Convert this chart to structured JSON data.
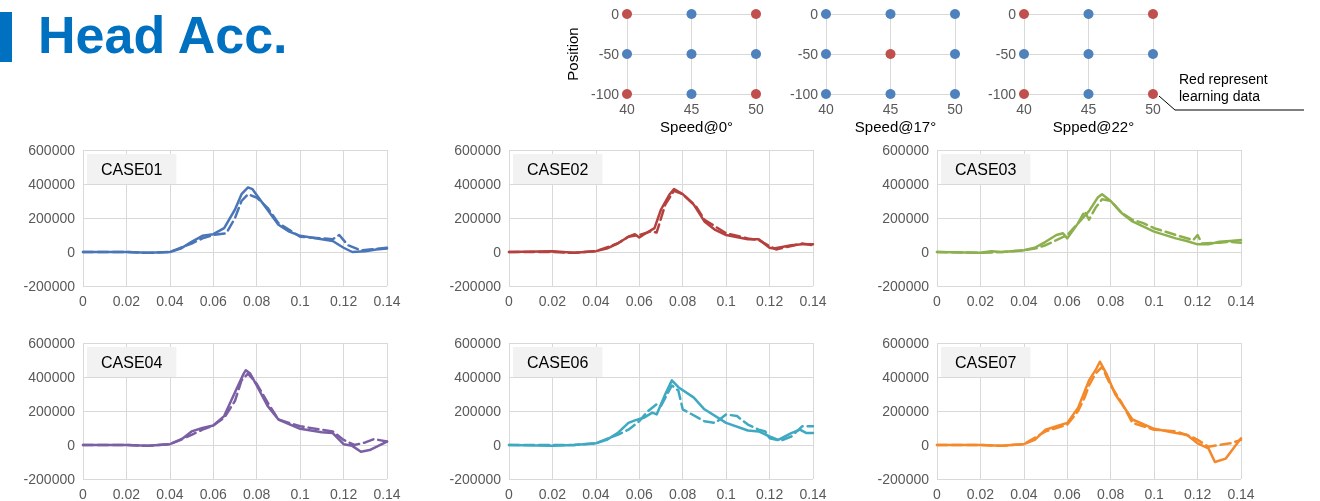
{
  "chart_data": [
    {
      "type": "other",
      "title": "Head Acc."
    },
    {
      "type": "scatter",
      "xlabel": "Speed@0°",
      "ylabel": "Position",
      "xlim": [
        40,
        50
      ],
      "ylim": [
        -100,
        0
      ],
      "xticks": [
        40,
        45,
        50
      ],
      "yticks": [
        -100,
        -50,
        0
      ],
      "grid": true,
      "marker": "circle",
      "series": [
        {
          "color": "#c0504d",
          "x": [
            40,
            50,
            40,
            50
          ],
          "values": [
            0,
            0,
            -100,
            -100
          ]
        },
        {
          "color": "#4f81bd",
          "x": [
            45,
            40,
            45,
            50,
            45
          ],
          "values": [
            0,
            -50,
            -50,
            -50,
            -100
          ]
        }
      ]
    },
    {
      "type": "scatter",
      "xlabel": "Speed@17°",
      "xlim": [
        40,
        50
      ],
      "ylim": [
        -100,
        0
      ],
      "xticks": [
        40,
        45,
        50
      ],
      "yticks": [
        -100,
        -50,
        0
      ],
      "grid": true,
      "marker": "circle",
      "series": [
        {
          "color": "#c0504d",
          "x": [
            45
          ],
          "values": [
            -50
          ]
        },
        {
          "color": "#4f81bd",
          "x": [
            40,
            45,
            50,
            40,
            50,
            40,
            45,
            50
          ],
          "values": [
            0,
            0,
            0,
            -50,
            -50,
            -100,
            -100,
            -100
          ]
        }
      ]
    },
    {
      "type": "scatter",
      "xlabel": "Spped@22°",
      "xlim": [
        40,
        50
      ],
      "ylim": [
        -100,
        0
      ],
      "xticks": [
        40,
        45,
        50
      ],
      "yticks": [
        -100,
        -50,
        0
      ],
      "grid": true,
      "marker": "circle",
      "annotations": [
        "Red represent learning data"
      ],
      "series": [
        {
          "color": "#c0504d",
          "x": [
            40,
            50,
            40,
            50
          ],
          "values": [
            0,
            0,
            -100,
            -100
          ]
        },
        {
          "color": "#4f81bd",
          "x": [
            45,
            40,
            45,
            50,
            45
          ],
          "values": [
            0,
            -50,
            -50,
            -50,
            -100
          ]
        }
      ]
    },
    {
      "type": "line",
      "title": "CASE01",
      "xlim": [
        0,
        0.14
      ],
      "xticks": [
        0,
        0.02,
        0.04,
        0.06,
        0.08,
        0.1,
        0.12,
        0.14
      ],
      "ylim": [
        -200000,
        600000
      ],
      "yticks": [
        -200000,
        0,
        200000,
        400000,
        600000
      ],
      "grid": true,
      "series": [
        {
          "color": "#4a76b8",
          "line_style": "solid",
          "x": [
            0,
            0.02,
            0.03,
            0.04,
            0.045,
            0.05,
            0.055,
            0.06,
            0.065,
            0.07,
            0.073,
            0.076,
            0.078,
            0.082,
            0.09,
            0.095,
            0.1,
            0.11,
            0.115,
            0.12,
            0.124,
            0.13,
            0.135,
            0.14
          ],
          "values": [
            0,
            0,
            -5000,
            0,
            20000,
            60000,
            95000,
            105000,
            140000,
            250000,
            340000,
            380000,
            370000,
            300000,
            160000,
            120000,
            95000,
            75000,
            65000,
            25000,
            0,
            5000,
            15000,
            20000
          ]
        },
        {
          "color": "#4a76b8",
          "line_style": "dashed",
          "x": [
            0,
            0.02,
            0.03,
            0.04,
            0.05,
            0.055,
            0.06,
            0.066,
            0.07,
            0.073,
            0.076,
            0.08,
            0.085,
            0.09,
            0.1,
            0.11,
            0.115,
            0.118,
            0.122,
            0.128,
            0.132,
            0.14
          ],
          "values": [
            0,
            0,
            -5000,
            0,
            50000,
            80000,
            100000,
            110000,
            200000,
            300000,
            340000,
            320000,
            260000,
            170000,
            90000,
            80000,
            75000,
            100000,
            40000,
            10000,
            15000,
            25000
          ]
        }
      ]
    },
    {
      "type": "line",
      "title": "CASE02",
      "xlim": [
        0,
        0.14
      ],
      "xticks": [
        0,
        0.02,
        0.04,
        0.06,
        0.08,
        0.1,
        0.12,
        0.14
      ],
      "ylim": [
        -200000,
        600000
      ],
      "yticks": [
        -200000,
        0,
        200000,
        400000,
        600000
      ],
      "grid": true,
      "series": [
        {
          "color": "#b5413e",
          "line_style": "solid",
          "x": [
            0,
            0.02,
            0.03,
            0.04,
            0.045,
            0.05,
            0.055,
            0.058,
            0.06,
            0.063,
            0.067,
            0.07,
            0.074,
            0.076,
            0.08,
            0.085,
            0.09,
            0.095,
            0.1,
            0.11,
            0.115,
            0.12,
            0.122,
            0.13,
            0.135,
            0.14
          ],
          "values": [
            0,
            5000,
            -5000,
            5000,
            20000,
            50000,
            90000,
            105000,
            85000,
            110000,
            140000,
            250000,
            340000,
            370000,
            340000,
            280000,
            180000,
            130000,
            100000,
            75000,
            75000,
            25000,
            20000,
            40000,
            45000,
            45000
          ]
        },
        {
          "color": "#b5413e",
          "line_style": "dashed",
          "x": [
            0,
            0.02,
            0.03,
            0.04,
            0.05,
            0.055,
            0.06,
            0.065,
            0.068,
            0.072,
            0.076,
            0.08,
            0.086,
            0.09,
            0.1,
            0.11,
            0.115,
            0.12,
            0.123,
            0.13,
            0.135,
            0.14
          ],
          "values": [
            0,
            0,
            -5000,
            5000,
            50000,
            90000,
            100000,
            120000,
            115000,
            280000,
            360000,
            340000,
            270000,
            190000,
            110000,
            80000,
            70000,
            35000,
            15000,
            35000,
            50000,
            40000
          ]
        }
      ]
    },
    {
      "type": "line",
      "title": "CASE03",
      "xlim": [
        0,
        0.14
      ],
      "xticks": [
        0,
        0.02,
        0.04,
        0.06,
        0.08,
        0.1,
        0.12,
        0.14
      ],
      "ylim": [
        -200000,
        600000
      ],
      "yticks": [
        -200000,
        0,
        200000,
        400000,
        600000
      ],
      "grid": true,
      "series": [
        {
          "color": "#8db04f",
          "line_style": "solid",
          "x": [
            0,
            0.02,
            0.025,
            0.03,
            0.04,
            0.045,
            0.05,
            0.055,
            0.058,
            0.06,
            0.065,
            0.07,
            0.074,
            0.076,
            0.08,
            0.085,
            0.09,
            0.1,
            0.11,
            0.115,
            0.12,
            0.125,
            0.13,
            0.135,
            0.14
          ],
          "values": [
            0,
            -5000,
            5000,
            0,
            10000,
            25000,
            60000,
            100000,
            110000,
            80000,
            170000,
            240000,
            320000,
            340000,
            300000,
            230000,
            180000,
            120000,
            80000,
            65000,
            45000,
            45000,
            60000,
            65000,
            70000
          ]
        },
        {
          "color": "#8db04f",
          "line_style": "dashed",
          "x": [
            0,
            0.02,
            0.03,
            0.04,
            0.045,
            0.05,
            0.055,
            0.06,
            0.065,
            0.068,
            0.07,
            0.073,
            0.076,
            0.08,
            0.085,
            0.09,
            0.095,
            0.1,
            0.11,
            0.118,
            0.12,
            0.122,
            0.13,
            0.135,
            0.14
          ],
          "values": [
            0,
            -5000,
            0,
            10000,
            20000,
            40000,
            70000,
            100000,
            170000,
            240000,
            190000,
            260000,
            310000,
            300000,
            230000,
            190000,
            170000,
            140000,
            100000,
            70000,
            100000,
            50000,
            55000,
            60000,
            55000
          ]
        }
      ]
    },
    {
      "type": "line",
      "title": "CASE04",
      "xlim": [
        0,
        0.14
      ],
      "xticks": [
        0,
        0.02,
        0.04,
        0.06,
        0.08,
        0.1,
        0.12,
        0.14
      ],
      "ylim": [
        -200000,
        600000
      ],
      "yticks": [
        -200000,
        0,
        200000,
        400000,
        600000
      ],
      "grid": true,
      "series": [
        {
          "color": "#7b5fa4",
          "line_style": "solid",
          "x": [
            0,
            0.02,
            0.03,
            0.04,
            0.045,
            0.05,
            0.055,
            0.06,
            0.065,
            0.07,
            0.074,
            0.075,
            0.077,
            0.08,
            0.085,
            0.09,
            0.1,
            0.11,
            0.115,
            0.12,
            0.124,
            0.128,
            0.132,
            0.14
          ],
          "values": [
            0,
            0,
            -5000,
            5000,
            30000,
            80000,
            100000,
            115000,
            170000,
            310000,
            420000,
            440000,
            420000,
            350000,
            230000,
            150000,
            95000,
            75000,
            70000,
            5000,
            -5000,
            -40000,
            -30000,
            20000
          ]
        },
        {
          "color": "#7b5fa4",
          "line_style": "dashed",
          "x": [
            0,
            0.02,
            0.03,
            0.04,
            0.05,
            0.055,
            0.06,
            0.065,
            0.07,
            0.073,
            0.076,
            0.08,
            0.085,
            0.09,
            0.1,
            0.11,
            0.115,
            0.12,
            0.125,
            0.13,
            0.134,
            0.14
          ],
          "values": [
            0,
            0,
            -5000,
            5000,
            60000,
            90000,
            115000,
            160000,
            260000,
            380000,
            420000,
            360000,
            250000,
            150000,
            110000,
            90000,
            80000,
            30000,
            0,
            15000,
            35000,
            20000
          ]
        }
      ]
    },
    {
      "type": "line",
      "title": "CASE06",
      "xlim": [
        0,
        0.14
      ],
      "xticks": [
        0,
        0.02,
        0.04,
        0.06,
        0.08,
        0.1,
        0.12,
        0.14
      ],
      "ylim": [
        -200000,
        600000
      ],
      "yticks": [
        -200000,
        0,
        200000,
        400000,
        600000
      ],
      "grid": true,
      "series": [
        {
          "color": "#3fa9c2",
          "line_style": "solid",
          "x": [
            0,
            0.02,
            0.03,
            0.04,
            0.045,
            0.05,
            0.055,
            0.058,
            0.062,
            0.066,
            0.068,
            0.072,
            0.075,
            0.078,
            0.085,
            0.09,
            0.1,
            0.11,
            0.115,
            0.12,
            0.124,
            0.13,
            0.134,
            0.137,
            0.14
          ],
          "values": [
            0,
            -5000,
            0,
            10000,
            30000,
            70000,
            130000,
            145000,
            160000,
            190000,
            180000,
            300000,
            380000,
            340000,
            280000,
            210000,
            130000,
            85000,
            80000,
            50000,
            30000,
            70000,
            90000,
            70000,
            70000
          ]
        },
        {
          "color": "#3fa9c2",
          "line_style": "dashed",
          "x": [
            0,
            0.02,
            0.03,
            0.04,
            0.05,
            0.055,
            0.06,
            0.064,
            0.068,
            0.07,
            0.075,
            0.078,
            0.08,
            0.09,
            0.095,
            0.1,
            0.105,
            0.11,
            0.115,
            0.118,
            0.12,
            0.125,
            0.13,
            0.135,
            0.14
          ],
          "values": [
            0,
            0,
            0,
            10000,
            60000,
            90000,
            140000,
            200000,
            240000,
            230000,
            350000,
            320000,
            210000,
            140000,
            130000,
            180000,
            170000,
            120000,
            90000,
            80000,
            40000,
            25000,
            50000,
            110000,
            110000
          ]
        }
      ]
    },
    {
      "type": "line",
      "title": "CASE07",
      "xlim": [
        0,
        0.14
      ],
      "xticks": [
        0,
        0.02,
        0.04,
        0.06,
        0.08,
        0.1,
        0.12,
        0.14
      ],
      "ylim": [
        -200000,
        600000
      ],
      "yticks": [
        -200000,
        0,
        200000,
        400000,
        600000
      ],
      "grid": true,
      "series": [
        {
          "color": "#f4892b",
          "line_style": "solid",
          "x": [
            0,
            0.02,
            0.03,
            0.04,
            0.045,
            0.05,
            0.055,
            0.06,
            0.065,
            0.07,
            0.073,
            0.075,
            0.078,
            0.082,
            0.09,
            0.1,
            0.11,
            0.115,
            0.12,
            0.125,
            0.128,
            0.133,
            0.14
          ],
          "values": [
            0,
            0,
            -5000,
            5000,
            30000,
            90000,
            110000,
            130000,
            220000,
            380000,
            440000,
            490000,
            420000,
            300000,
            150000,
            95000,
            70000,
            60000,
            10000,
            -20000,
            -100000,
            -80000,
            40000
          ]
        },
        {
          "color": "#f4892b",
          "line_style": "dashed",
          "x": [
            0,
            0.02,
            0.03,
            0.04,
            0.05,
            0.055,
            0.06,
            0.065,
            0.068,
            0.07,
            0.073,
            0.076,
            0.08,
            0.085,
            0.09,
            0.1,
            0.11,
            0.117,
            0.12,
            0.125,
            0.13,
            0.135,
            0.14
          ],
          "values": [
            0,
            0,
            -5000,
            5000,
            80000,
            100000,
            120000,
            200000,
            280000,
            350000,
            420000,
            460000,
            350000,
            250000,
            130000,
            90000,
            80000,
            50000,
            30000,
            -10000,
            0,
            10000,
            30000
          ]
        }
      ]
    }
  ]
}
